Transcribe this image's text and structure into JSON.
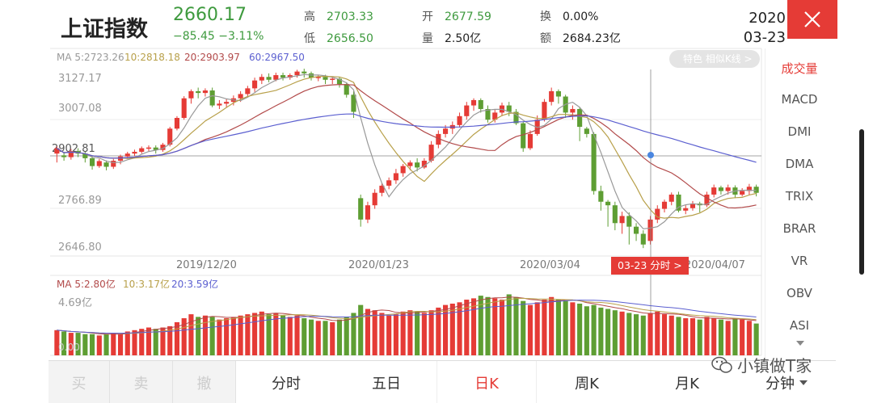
{
  "header": {
    "stock_name": "上证指数",
    "price": "2660.17",
    "change": "−85.45  −3.11%",
    "stats": [
      {
        "label": "高",
        "value": "2703.33",
        "color": "green"
      },
      {
        "label": "低",
        "value": "2656.50",
        "color": "green"
      },
      {
        "label": "开",
        "value": "2677.59",
        "color": "green"
      },
      {
        "label": "量",
        "value": "2.50亿",
        "color": "dark"
      },
      {
        "label": "换",
        "value": "0.00%",
        "color": "dark"
      },
      {
        "label": "额",
        "value": "2684.23亿",
        "color": "dark"
      }
    ],
    "year": "2020",
    "date": "03-23"
  },
  "price_chart": {
    "ma_legend": [
      "MA 5:2723.26",
      "10:2818.18",
      "20:2903.97",
      "60:2967.50"
    ],
    "ma_colors": [
      "#999999",
      "#b8a04a",
      "#b24a4a",
      "#5b5fd0"
    ],
    "y_labels": [
      "3127.17",
      "3007.08",
      "2902.81",
      "2766.89",
      "2646.80"
    ],
    "x_labels": [
      "2019/12/20",
      "2020/01/23",
      "2020/03/04",
      "2020/04/07"
    ],
    "cursor_label": "03-23 分时 >",
    "feature_tag": "特色 相似K线 >"
  },
  "volume_chart": {
    "ma_legend": [
      "MA 5:2.80亿",
      "10:3.17亿",
      "20:3.59亿"
    ],
    "top_label": "4.69亿",
    "bottom_label": "0.00"
  },
  "indicators": {
    "items": [
      "成交量",
      "MACD",
      "DMI",
      "DMA",
      "TRIX",
      "BRAR",
      "VR",
      "OBV",
      "ASI"
    ],
    "active": "成交量"
  },
  "tabs": {
    "trade": [
      "买",
      "卖",
      "撤"
    ],
    "periods": [
      "分时",
      "五日",
      "日K",
      "周K",
      "月K",
      "分钟"
    ],
    "active": "日K"
  },
  "watermark": "小镇做T家",
  "colors": {
    "up": "#e53b36",
    "down": "#5e9e33",
    "accent": "#e53b36"
  },
  "chart_data": {
    "type": "candlestick",
    "candles": [
      [
        2905,
        2920,
        2880,
        2925
      ],
      [
        2900,
        2895,
        2885,
        2910
      ],
      [
        2895,
        2912,
        2888,
        2918
      ],
      [
        2912,
        2905,
        2895,
        2920
      ],
      [
        2905,
        2892,
        2880,
        2910
      ],
      [
        2892,
        2870,
        2860,
        2898
      ],
      [
        2870,
        2884,
        2865,
        2890
      ],
      [
        2880,
        2868,
        2858,
        2886
      ],
      [
        2868,
        2885,
        2862,
        2890
      ],
      [
        2885,
        2897,
        2875,
        2902
      ],
      [
        2897,
        2905,
        2890,
        2910
      ],
      [
        2905,
        2910,
        2898,
        2916
      ],
      [
        2910,
        2920,
        2905,
        2925
      ],
      [
        2920,
        2922,
        2912,
        2928
      ],
      [
        2922,
        2915,
        2905,
        2928
      ],
      [
        2915,
        2930,
        2910,
        2935
      ],
      [
        2930,
        2975,
        2925,
        2980
      ],
      [
        2975,
        3005,
        2970,
        3010
      ],
      [
        3005,
        3060,
        3000,
        3066
      ],
      [
        3060,
        3080,
        3045,
        3085
      ],
      [
        3080,
        3075,
        3060,
        3090
      ],
      [
        3075,
        3082,
        3065,
        3088
      ],
      [
        3082,
        3040,
        3035,
        3090
      ],
      [
        3040,
        3045,
        3030,
        3055
      ],
      [
        3045,
        3050,
        3035,
        3058
      ],
      [
        3050,
        3060,
        3040,
        3068
      ],
      [
        3060,
        3072,
        3050,
        3080
      ],
      [
        3072,
        3088,
        3062,
        3095
      ],
      [
        3088,
        3110,
        3078,
        3118
      ],
      [
        3110,
        3120,
        3100,
        3128
      ],
      [
        3120,
        3112,
        3105,
        3130
      ],
      [
        3112,
        3125,
        3108,
        3132
      ],
      [
        3125,
        3118,
        3110,
        3132
      ],
      [
        3118,
        3125,
        3112,
        3130
      ],
      [
        3125,
        3135,
        3118,
        3140
      ],
      [
        3135,
        3130,
        3118,
        3143
      ],
      [
        3130,
        3118,
        3110,
        3135
      ],
      [
        3118,
        3120,
        3108,
        3126
      ],
      [
        3120,
        3112,
        3100,
        3126
      ],
      [
        3112,
        3115,
        3100,
        3122
      ],
      [
        3115,
        3100,
        3090,
        3120
      ],
      [
        3100,
        3070,
        3062,
        3105
      ],
      [
        3070,
        3022,
        3005,
        3080
      ],
      [
        2780,
        2720,
        2700,
        2790
      ],
      [
        2720,
        2760,
        2710,
        2770
      ],
      [
        2760,
        2795,
        2750,
        2805
      ],
      [
        2795,
        2815,
        2785,
        2822
      ],
      [
        2815,
        2830,
        2805,
        2838
      ],
      [
        2830,
        2850,
        2820,
        2862
      ],
      [
        2850,
        2870,
        2840,
        2876
      ],
      [
        2870,
        2880,
        2858,
        2886
      ],
      [
        2880,
        2866,
        2855,
        2892
      ],
      [
        2866,
        2885,
        2862,
        2892
      ],
      [
        2885,
        2930,
        2880,
        2940
      ],
      [
        2930,
        2960,
        2920,
        2970
      ],
      [
        2960,
        2975,
        2950,
        2985
      ],
      [
        2975,
        2985,
        2960,
        2995
      ],
      [
        2985,
        3010,
        2978,
        3020
      ],
      [
        3010,
        3040,
        3000,
        3050
      ],
      [
        3040,
        3055,
        3025,
        3060
      ],
      [
        3055,
        3030,
        3020,
        3060
      ],
      [
        3030,
        3000,
        2992,
        3040
      ],
      [
        3000,
        3020,
        2992,
        3030
      ],
      [
        3020,
        3040,
        3010,
        3048
      ],
      [
        3040,
        3022,
        3010,
        3050
      ],
      [
        3022,
        2990,
        2985,
        3030
      ],
      [
        2990,
        2920,
        2910,
        2995
      ],
      [
        2920,
        2960,
        2915,
        2970
      ],
      [
        2960,
        3000,
        2955,
        3012
      ],
      [
        3000,
        3050,
        2995,
        3058
      ],
      [
        3050,
        3080,
        3040,
        3090
      ],
      [
        3080,
        3065,
        3045,
        3085
      ],
      [
        3065,
        3020,
        3005,
        3070
      ],
      [
        3020,
        3030,
        3000,
        3040
      ],
      [
        3030,
        2980,
        2940,
        3035
      ],
      [
        2975,
        2960,
        2950,
        2980
      ],
      [
        2960,
        2800,
        2790,
        2965
      ],
      [
        2800,
        2770,
        2745,
        2815
      ],
      [
        2770,
        2760,
        2700,
        2775
      ],
      [
        2760,
        2710,
        2690,
        2770
      ],
      [
        2710,
        2730,
        2680,
        2742
      ],
      [
        2730,
        2700,
        2650,
        2740
      ],
      [
        2700,
        2680,
        2660,
        2710
      ],
      [
        2680,
        2650,
        2640,
        2690
      ],
      [
        2660,
        2720,
        2650,
        2730
      ],
      [
        2720,
        2750,
        2710,
        2760
      ],
      [
        2750,
        2770,
        2740,
        2776
      ],
      [
        2770,
        2790,
        2760,
        2796
      ],
      [
        2790,
        2745,
        2740,
        2798
      ],
      [
        2745,
        2752,
        2735,
        2760
      ],
      [
        2752,
        2765,
        2745,
        2772
      ],
      [
        2765,
        2760,
        2740,
        2770
      ],
      [
        2760,
        2790,
        2755,
        2798
      ],
      [
        2790,
        2810,
        2782,
        2818
      ],
      [
        2810,
        2800,
        2790,
        2815
      ],
      [
        2800,
        2810,
        2790,
        2818
      ],
      [
        2810,
        2790,
        2780,
        2816
      ],
      [
        2790,
        2800,
        2785,
        2808
      ],
      [
        2800,
        2812,
        2790,
        2820
      ],
      [
        2812,
        2795,
        2785,
        2818
      ]
    ],
    "volumes": [
      1.9,
      1.8,
      1.7,
      1.7,
      1.6,
      1.6,
      1.5,
      1.6,
      1.7,
      1.6,
      1.8,
      1.9,
      2.0,
      2.1,
      2.0,
      2.1,
      2.2,
      2.5,
      2.8,
      3.1,
      2.9,
      3.0,
      2.9,
      2.7,
      2.8,
      2.9,
      3.0,
      3.1,
      3.2,
      3.3,
      3.1,
      3.2,
      3.0,
      2.9,
      3.0,
      2.8,
      2.7,
      2.6,
      2.6,
      2.5,
      2.7,
      2.9,
      3.2,
      3.8,
      3.5,
      3.4,
      3.2,
      3.0,
      3.1,
      3.3,
      3.4,
      3.3,
      3.2,
      3.4,
      3.6,
      3.8,
      3.9,
      4.0,
      4.2,
      4.3,
      4.5,
      4.4,
      4.3,
      4.2,
      4.6,
      4.4,
      4.1,
      3.8,
      4.0,
      4.2,
      4.4,
      4.2,
      4.1,
      4.0,
      3.9,
      3.7,
      3.8,
      3.6,
      3.5,
      3.4,
      3.3,
      3.2,
      3.1,
      3.0,
      3.2,
      3.3,
      3.1,
      3.0,
      2.9,
      2.8,
      2.8,
      2.7,
      2.9,
      2.8,
      2.7,
      2.6,
      2.8,
      2.7,
      2.6,
      2.4
    ],
    "y_range": [
      2620,
      3150
    ],
    "volume_range": [
      0,
      4.69
    ]
  }
}
